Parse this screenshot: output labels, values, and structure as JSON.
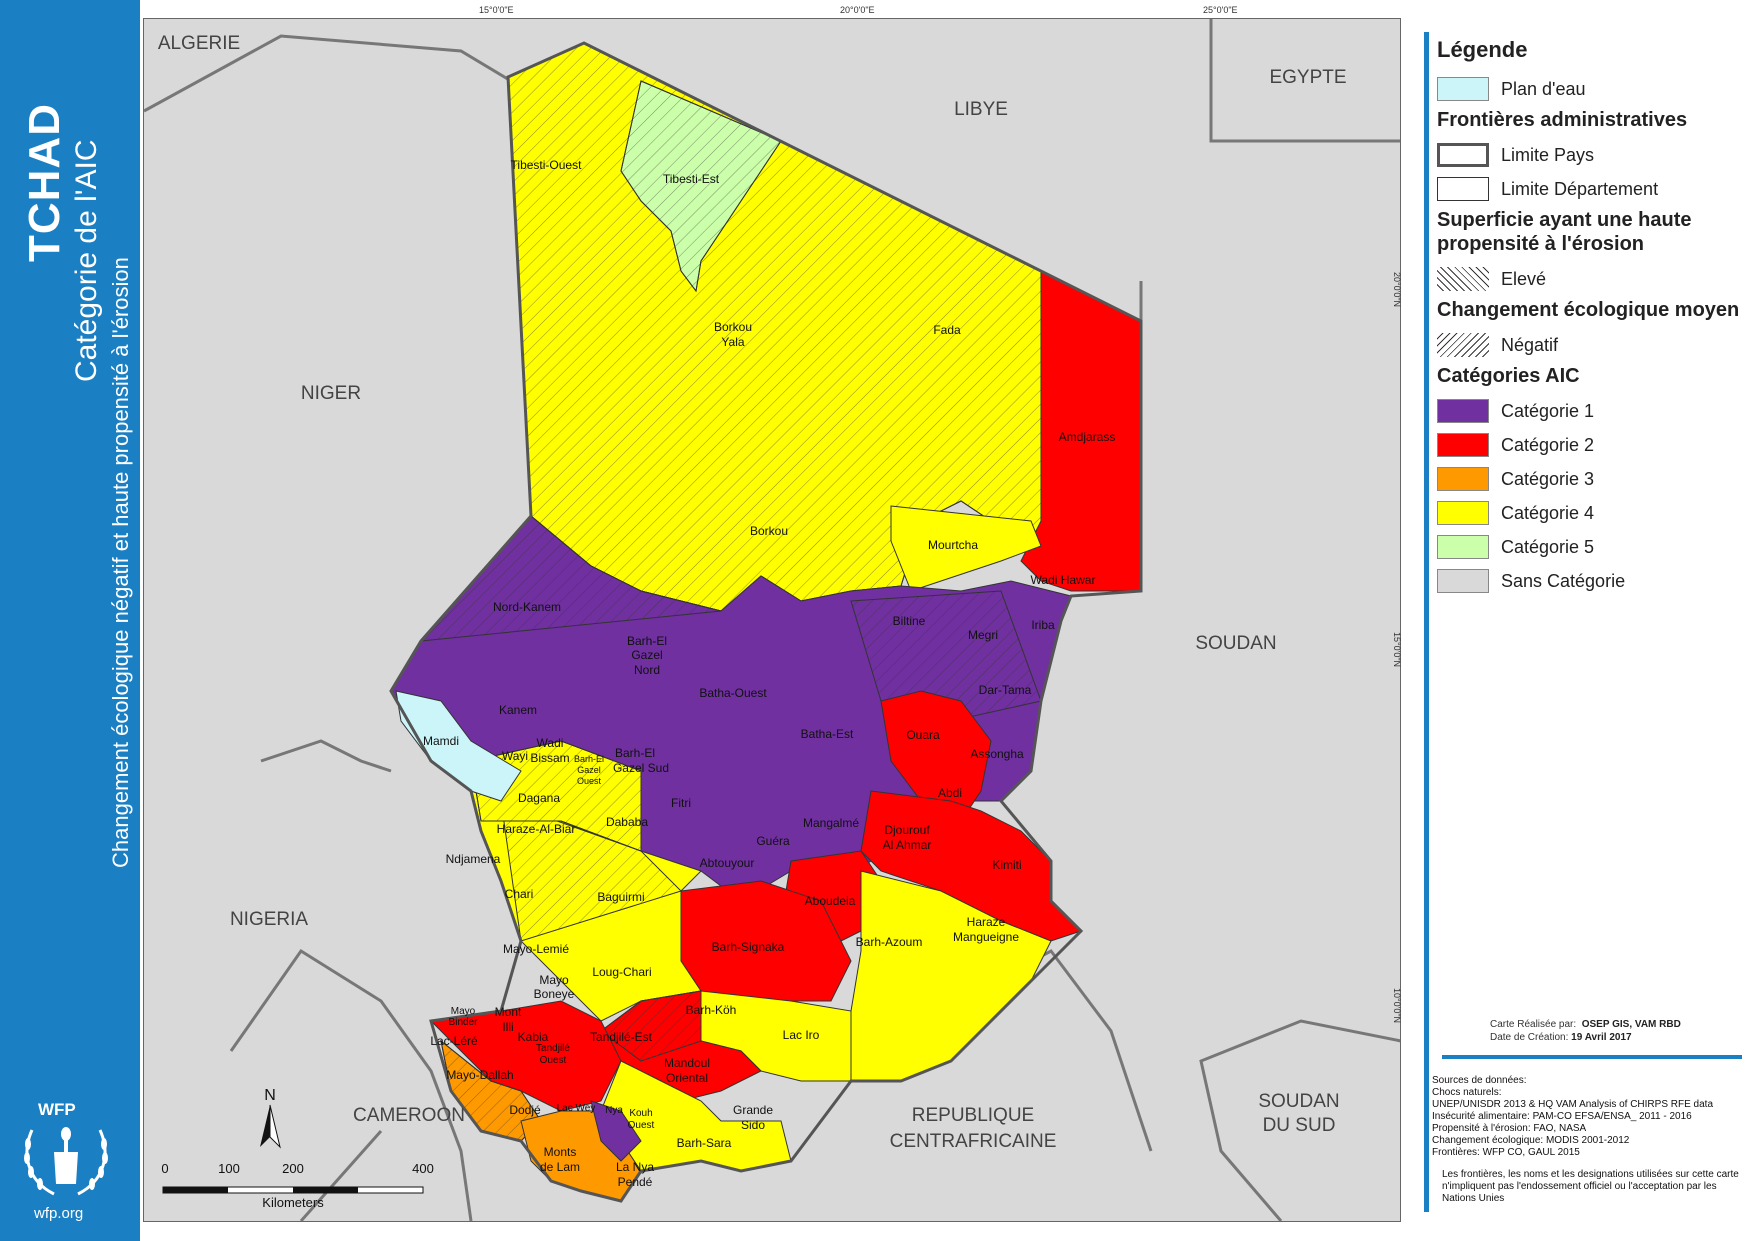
{
  "title": {
    "main": "TCHAD",
    "subtitle": "Catégorie de l'AIC",
    "subtitle2": "Changement écologique négatif et haute propensité à l'érosion"
  },
  "branding": {
    "logo_text": "WFP",
    "url": "wfp.org"
  },
  "map": {
    "coordinates": {
      "top_15": "15°0'0\"E",
      "top_20": "20°0'0\"E",
      "top_25": "25°0'0\"E",
      "right_20": "20°0'0\"N",
      "right_15": "15°0'0\"N",
      "right_10": "10°0'0\"N"
    },
    "countries": {
      "algerie": "ALGERIE",
      "libye": "LIBYE",
      "egypte": "EGYPTE",
      "niger": "NIGER",
      "soudan": "SOUDAN",
      "nigeria": "NIGERIA",
      "cameroon": "CAMEROON",
      "rca_1": "REPUBLIQUE",
      "rca_2": "CENTRAFRICAINE",
      "soudan_sud_1": "SOUDAN",
      "soudan_sud_2": "DU SUD"
    },
    "departments": {
      "tibesti_ouest": "Tibesti-Ouest",
      "tibesti_est": "Tibesti-Est",
      "borkou_yala_1": "Borkou",
      "borkou_yala_2": "Yala",
      "fada": "Fada",
      "amdjarass": "Amdjarass",
      "borkou": "Borkou",
      "mourtcha": "Mourtcha",
      "wadi_hawar": "Wadi Hawar",
      "nord_kanem": "Nord-Kanem",
      "bahr_gazel_nord_1": "Barh-El",
      "bahr_gazel_nord_2": "Gazel",
      "bahr_gazel_nord_3": "Nord",
      "iriba": "Iriba",
      "biltine": "Biltine",
      "megri": "Megri",
      "dar_tama": "Dar-Tama",
      "kanem": "Kanem",
      "batha_ouest": "Batha-Ouest",
      "batha_est": "Batha-Est",
      "ouara": "Ouara",
      "assongha": "Assongha",
      "mamdi": "Mamdi",
      "wayi": "Wayi",
      "wadi_bissam_1": "Wadi",
      "wadi_bissam_2": "Bissam",
      "bahr_gazel_ouest_1": "Barh-El",
      "bahr_gazel_ouest_2": "Gazel",
      "bahr_gazel_ouest_3": "Ouest",
      "bahr_gazel_sud_1": "Barh-El",
      "bahr_gazel_sud_2": "Gazel Sud",
      "abdi": "Abdi",
      "dagana": "Dagana",
      "fitri": "Fitri",
      "haraze_al_biar": "Haraze-Al-Biar",
      "dababa": "Dababa",
      "mangalme": "Mangalmé",
      "djourouf_1": "Djourouf",
      "djourouf_2": "Al Ahmar",
      "ndjamena": "Ndjamena",
      "abtouyour": "Abtouyour",
      "guera": "Guéra",
      "kimiti": "Kimiti",
      "chari": "Chari",
      "baguirmi": "Baguirmi",
      "aboudeia": "Aboudeia",
      "haraze_m_1": "Haraze",
      "haraze_m_2": "Mangueigne",
      "barh_azoum": "Barh-Azoum",
      "barh_signaka": "Barh-Signaka",
      "mayo_lemie": "Mayo-Lemié",
      "loug_chari": "Loug-Chari",
      "mayo_boneye_1": "Mayo",
      "mayo_boneye_2": "Boneye",
      "barh_koh": "Barh-Köh",
      "mayo_binder_1": "Mayo",
      "mayo_binder_2": "Binder",
      "mont_illi_1": "Mont",
      "mont_illi_2": "Illi",
      "lac_lera": "Lac-Léré",
      "kabia": "Kabia",
      "tandjile_est": "Tandjilé-Est",
      "tandjile_ouest_1": "Tandjilé",
      "tandjile_ouest_2": "Ouest",
      "lac_iro": "Lac Iro",
      "mayo_dallah": "Mayo-Dallah",
      "mandoul_1": "Mandoul",
      "mandoul_2": "Oriental",
      "dodje": "Dodjé",
      "lac_wey": "Lac Wey",
      "grande_sido_1": "Grande",
      "grande_sido_2": "Sido",
      "kouh_ouest_1": "Kouh",
      "kouh_ouest_2": "Ouest",
      "nya": "Nya",
      "barh_sara": "Barh-Sara",
      "monts_lam_1": "Monts",
      "monts_lam_2": "de Lam",
      "la_nya_pende_1": "La Nya",
      "la_nya_pende_2": "Pendé"
    },
    "north_arrow": "N",
    "scale": {
      "t0": "0",
      "t100": "100",
      "t200": "200",
      "t400": "400",
      "unit": "Kilometers"
    }
  },
  "legend": {
    "title": "Légende",
    "water": "Plan d'eau",
    "admin_header": "Frontières administratives",
    "limite_pays": "Limite Pays",
    "limite_departement": "Limite Département",
    "erosion_header": "Superficie ayant une haute propensité à l'érosion",
    "eleve": "Elevé",
    "eco_header": "Changement écologique moyen",
    "negatif": "Négatif",
    "aic_header": "Catégories AIC",
    "cat1": "Catégorie 1",
    "cat2": "Catégorie 2",
    "cat3": "Catégorie 3",
    "cat4": "Catégorie 4",
    "cat5": "Catégorie 5",
    "sans": "Sans Catégorie"
  },
  "colors": {
    "cat1": "#7030a0",
    "cat2": "#ff0000",
    "cat3": "#ff9900",
    "cat4": "#ffff00",
    "cat5": "#ccffaa",
    "sans": "#d9d9d9",
    "water": "#ccf5f9",
    "brand_blue": "#1a7fc3"
  },
  "credits": {
    "made_label": "Carte Réalisée par:",
    "made_value": "OSEP GIS, VAM RBD",
    "date_label": "Date de Création:",
    "date_value": "19 Avril 2017"
  },
  "sources": {
    "header": "Sources de données:",
    "chocs_label": "Chocs naturels:",
    "chocs": "UNEP/UNISDR 2013 & HQ VAM Analysis of CHIRPS RFE data",
    "insecurite": "Insécurité alimentaire: PAM-CO EFSA/ENSA_ 2011 - 2016",
    "propensite": "Propensité à l'érosion: FAO, NASA",
    "changement": "Changement écologique: MODIS 2001-2012",
    "frontieres": "Frontières: WFP CO, GAUL 2015",
    "disclaimer": "Les frontières, les noms et les designations utilisées sur cette carte n'impliquent pas l'endossement officiel ou l'acceptation par les Nations Unies"
  }
}
